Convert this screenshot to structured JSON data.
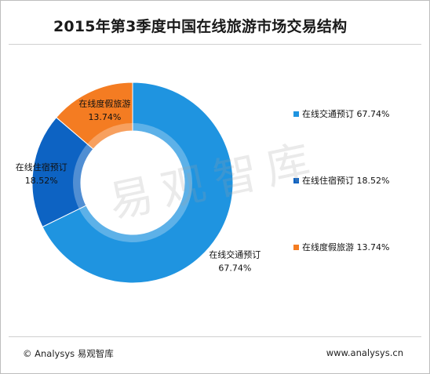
{
  "title": "2015年第3季度中国在线旅游市场交易结构",
  "footer": {
    "left": "© Analysys 易观智库",
    "right": "www.analysys.cn"
  },
  "watermark": "易观智库",
  "chart_data": {
    "type": "pie",
    "subtype": "donut",
    "title": "2015年第3季度中国在线旅游市场交易结构",
    "legend_position": "right",
    "slices": [
      {
        "name": "在线交通预订",
        "value": 67.74,
        "label": "67.74%",
        "color": "#1f94e0"
      },
      {
        "name": "在线住宿预订",
        "value": 18.52,
        "label": "18.52%",
        "color": "#0d63c3"
      },
      {
        "name": "在线度假旅游",
        "value": 13.74,
        "label": "13.74%",
        "color": "#f47c22"
      }
    ]
  }
}
